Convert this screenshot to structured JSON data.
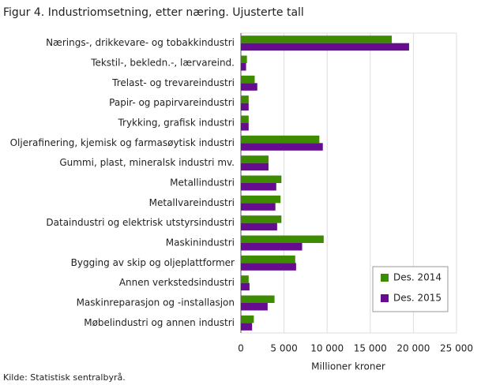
{
  "chart_data": {
    "type": "hbar",
    "title": "Figur 4. Industriomsetning, etter næring. Ujusterte tall",
    "x_label": "Millioner  kroner",
    "source": "Kilde: Statistisk sentralbyrå.",
    "categories": [
      "Nærings-, drikkevare- og tobakkindustri",
      "Tekstil-, bekledn.-, lærvareind.",
      "Trelast- og trevareindustri",
      "Papir- og papirvareindustri",
      "Trykking, grafisk industri",
      "Oljerafinering, kjemisk og farmasøytisk industri",
      "Gummi, plast, mineralsk industri mv.",
      "Metallindustri",
      "Metallvareindustri",
      "Dataindustri og elektrisk utstyrsindustri",
      "Maskinindustri",
      "Bygging av skip og oljeplattformer",
      "Annen verkstedsindustri",
      "Maskinreparasjon og -installasjon",
      "Møbelindustri og annen industri"
    ],
    "series": [
      {
        "name": "Des. 2014",
        "color": "#3d8c00",
        "values": [
          17500,
          700,
          1600,
          900,
          900,
          9100,
          3200,
          4700,
          4600,
          4700,
          9600,
          6300,
          900,
          3900,
          1500
        ]
      },
      {
        "name": "Des. 2015",
        "color": "#660d8f",
        "values": [
          19500,
          600,
          1900,
          900,
          900,
          9500,
          3200,
          4100,
          4000,
          4200,
          7100,
          6400,
          1000,
          3100,
          1300
        ]
      }
    ],
    "xlim": [
      0,
      25000
    ],
    "xticks": [
      0,
      {
        "value": 5000,
        "label": "5 000"
      },
      {
        "value": 10000,
        "label": "10 000"
      },
      {
        "value": 15000,
        "label": "15 000"
      },
      {
        "value": 20000,
        "label": "20 000"
      },
      {
        "value": 25000,
        "label": "25 000"
      }
    ],
    "grid": true,
    "legend": "lower right"
  }
}
